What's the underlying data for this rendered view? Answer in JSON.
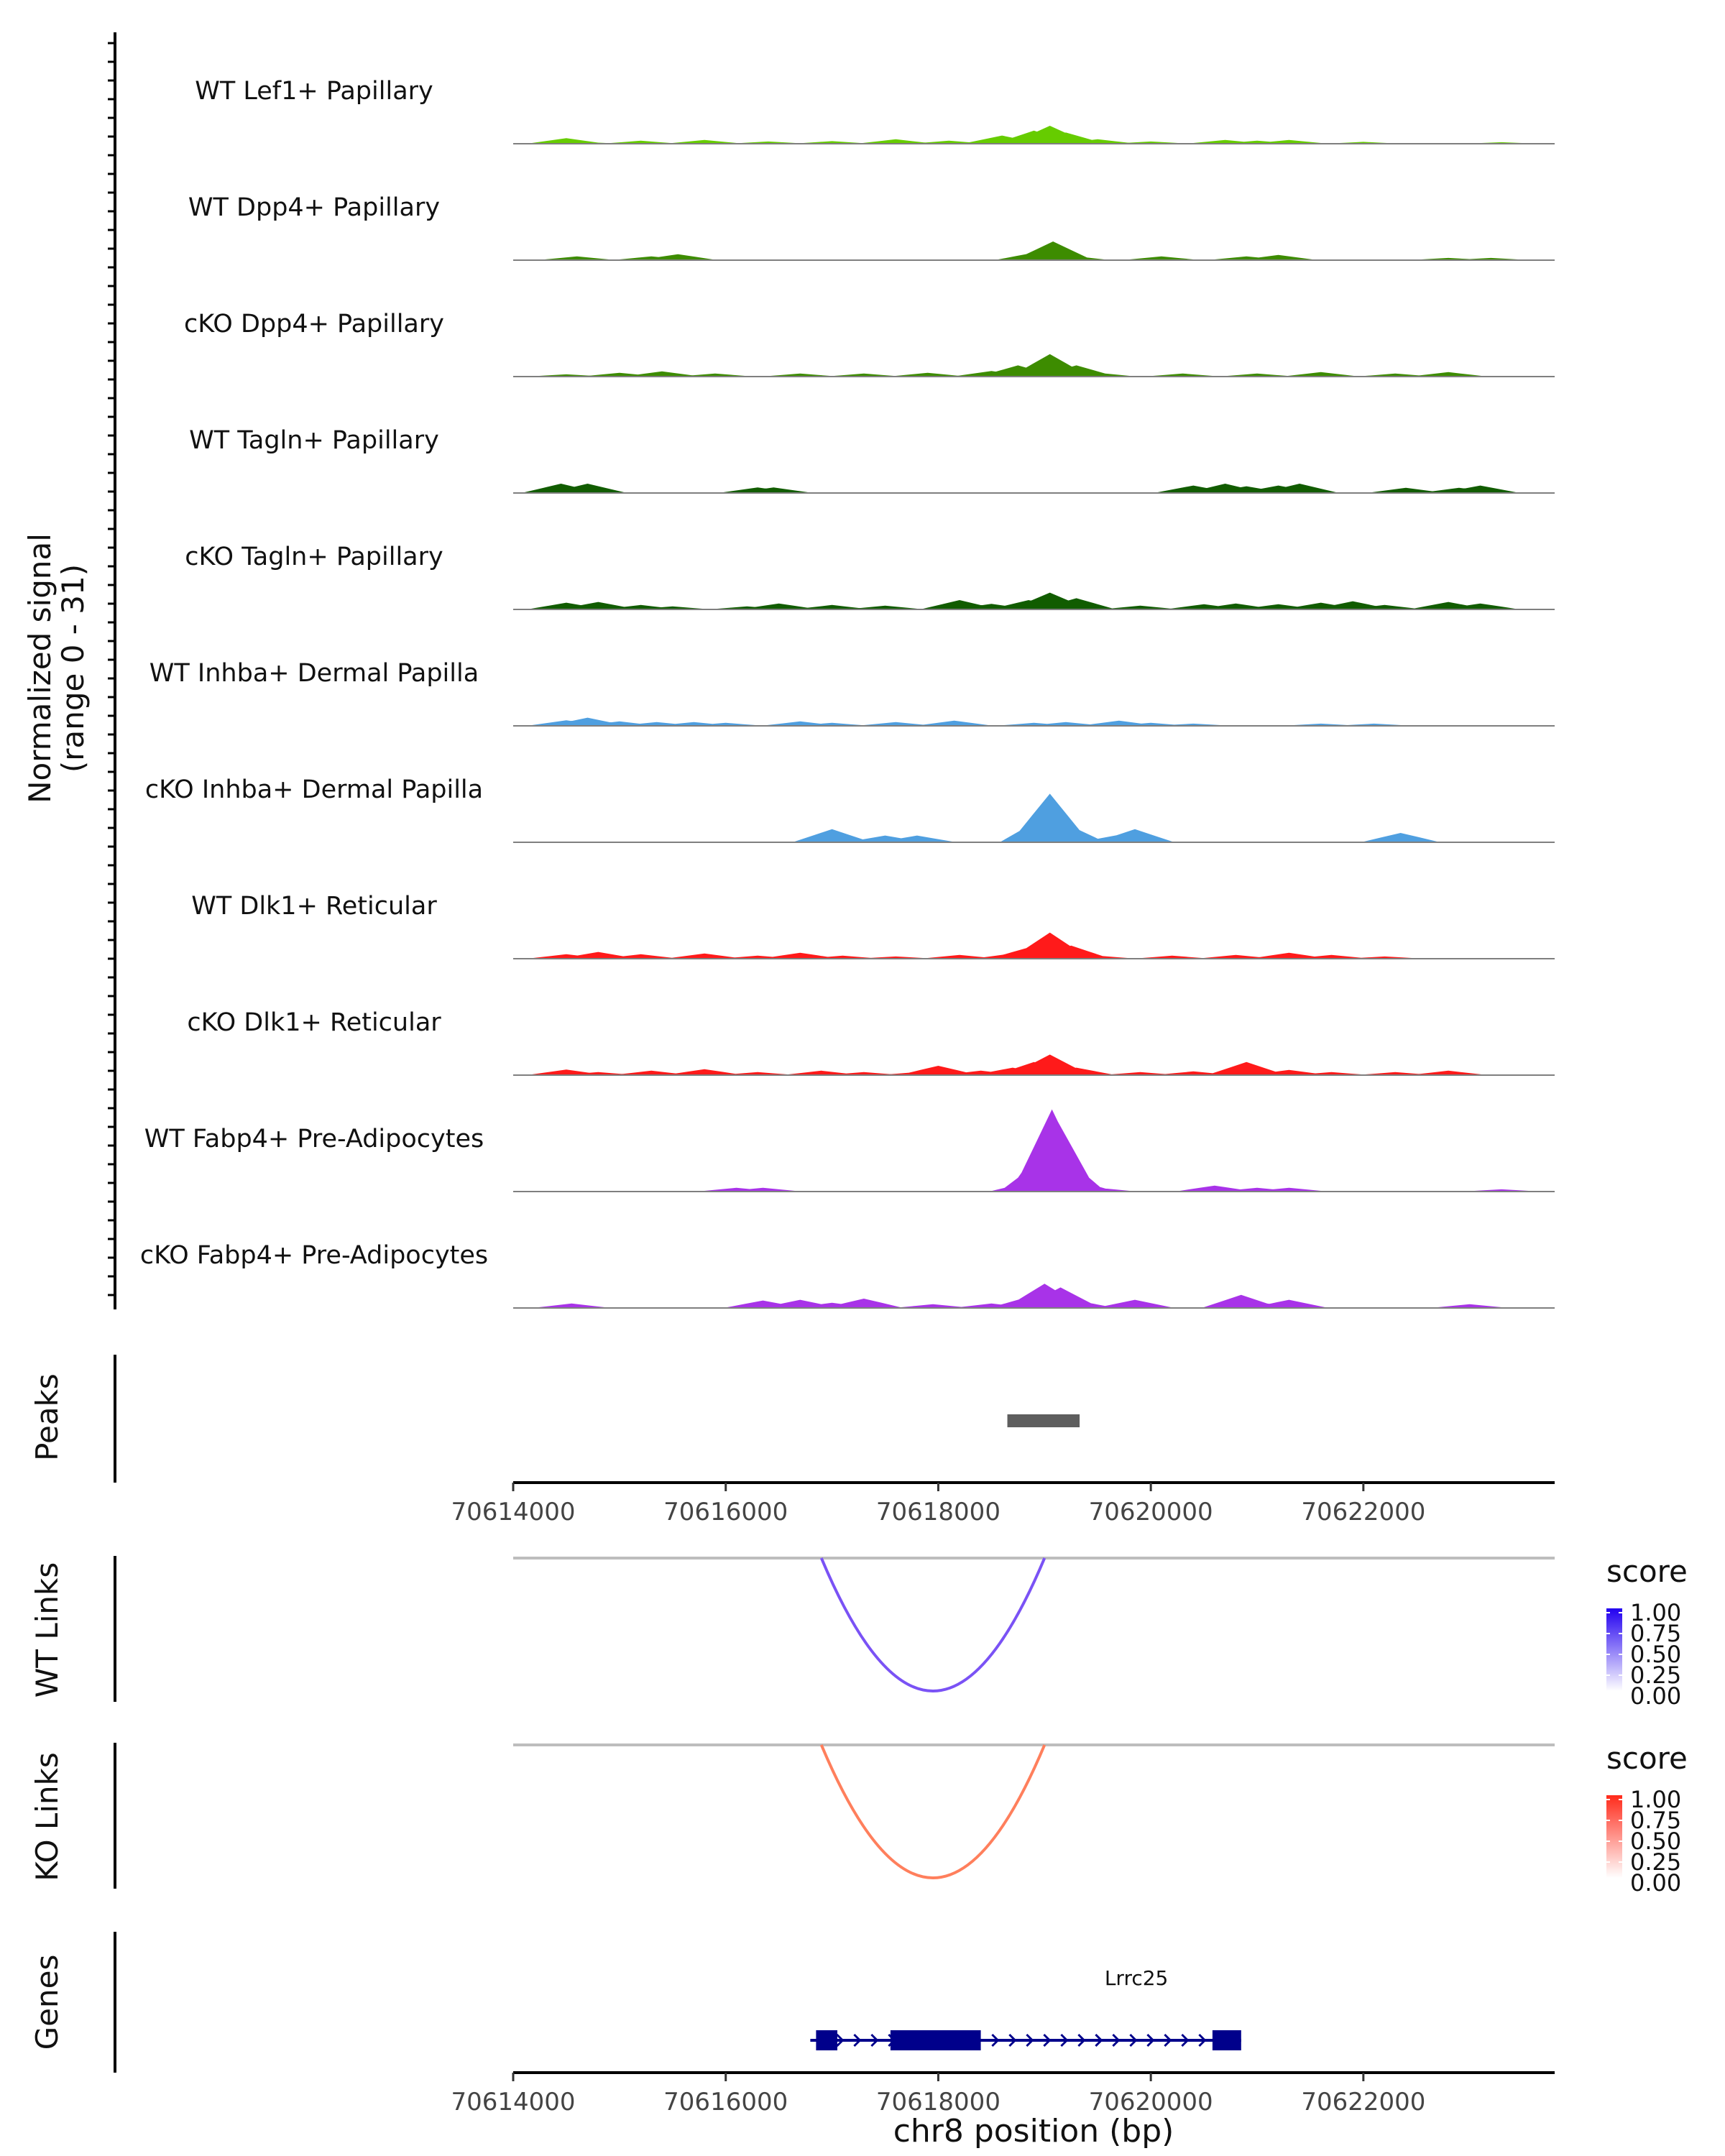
{
  "chart_data": {
    "type": "area",
    "genome_region": {
      "chrom": "chr8",
      "start": 70614000,
      "end": 70623800
    },
    "xlabel": "chr8 position (bp)",
    "x_ticks": [
      70614000,
      70616000,
      70618000,
      70620000,
      70622000
    ],
    "coverage": {
      "ylabel_line1": "Normalized signal",
      "ylabel_line2": "(range 0 - 31)",
      "range": [
        0,
        31
      ],
      "tracks": [
        {
          "name": "WT Lef1+ Papillary",
          "color": "#66cc00",
          "points": [
            [
              70614500,
              1.5
            ],
            [
              70614650,
              0.5
            ],
            [
              70615200,
              0.8
            ],
            [
              70615800,
              1.0
            ],
            [
              70616400,
              0.6
            ],
            [
              70617000,
              0.7
            ],
            [
              70617600,
              1.2
            ],
            [
              70618100,
              0.8
            ],
            [
              70618600,
              2.2
            ],
            [
              70618900,
              3.5
            ],
            [
              70619050,
              4.8
            ],
            [
              70619200,
              3.0
            ],
            [
              70619500,
              1.2
            ],
            [
              70620000,
              0.6
            ],
            [
              70620700,
              1.0
            ],
            [
              70621000,
              0.8
            ],
            [
              70621300,
              1.0
            ],
            [
              70622000,
              0.5
            ],
            [
              70623300,
              0.4
            ]
          ]
        },
        {
          "name": "WT Dpp4+ Papillary",
          "color": "#3d8c00",
          "points": [
            [
              70614600,
              1.0
            ],
            [
              70615300,
              1.0
            ],
            [
              70615550,
              1.6
            ],
            [
              70618900,
              2.0
            ],
            [
              70619080,
              5.0
            ],
            [
              70619250,
              1.2
            ],
            [
              70620100,
              1.0
            ],
            [
              70620900,
              1.0
            ],
            [
              70621200,
              1.4
            ],
            [
              70622800,
              0.6
            ],
            [
              70623200,
              0.6
            ]
          ]
        },
        {
          "name": "cKO Dpp4+ Papillary",
          "color": "#3d8c00",
          "points": [
            [
              70614500,
              0.6
            ],
            [
              70615000,
              1.0
            ],
            [
              70615400,
              1.4
            ],
            [
              70615900,
              0.8
            ],
            [
              70616700,
              0.8
            ],
            [
              70617300,
              0.8
            ],
            [
              70617900,
              1.0
            ],
            [
              70618500,
              1.5
            ],
            [
              70618750,
              3.0
            ],
            [
              70619050,
              6.0
            ],
            [
              70619300,
              3.0
            ],
            [
              70619500,
              1.0
            ],
            [
              70620300,
              0.8
            ],
            [
              70621000,
              0.8
            ],
            [
              70621600,
              1.2
            ],
            [
              70622300,
              0.8
            ],
            [
              70622800,
              1.2
            ]
          ]
        },
        {
          "name": "WT Tagln+ Papillary",
          "color": "#115c00",
          "points": [
            [
              70614450,
              2.5
            ],
            [
              70614700,
              2.5
            ],
            [
              70616300,
              1.5
            ],
            [
              70616450,
              1.5
            ],
            [
              70620400,
              2.0
            ],
            [
              70620700,
              2.5
            ],
            [
              70620900,
              1.8
            ],
            [
              70621200,
              2.0
            ],
            [
              70621400,
              2.5
            ],
            [
              70622400,
              1.4
            ],
            [
              70622900,
              1.4
            ],
            [
              70623100,
              2.0
            ]
          ]
        },
        {
          "name": "cKO Tagln+ Papillary",
          "color": "#115c00",
          "points": [
            [
              70614500,
              1.8
            ],
            [
              70614800,
              2.0
            ],
            [
              70615200,
              1.2
            ],
            [
              70615500,
              0.8
            ],
            [
              70616200,
              0.8
            ],
            [
              70616500,
              1.6
            ],
            [
              70617000,
              1.2
            ],
            [
              70617500,
              1.0
            ],
            [
              70618200,
              2.5
            ],
            [
              70618500,
              1.5
            ],
            [
              70618850,
              2.5
            ],
            [
              70619050,
              4.5
            ],
            [
              70619300,
              3.0
            ],
            [
              70619900,
              1.0
            ],
            [
              70620500,
              1.4
            ],
            [
              70620800,
              1.6
            ],
            [
              70621200,
              1.4
            ],
            [
              70621600,
              1.8
            ],
            [
              70621900,
              2.2
            ],
            [
              70622200,
              1.2
            ],
            [
              70622800,
              2.0
            ],
            [
              70623100,
              1.6
            ]
          ]
        },
        {
          "name": "WT Inhba+ Dermal Papilla",
          "color": "#4f9fe0",
          "points": [
            [
              70614500,
              1.5
            ],
            [
              70614700,
              2.2
            ],
            [
              70615000,
              1.2
            ],
            [
              70615350,
              1.0
            ],
            [
              70615700,
              1.0
            ],
            [
              70616000,
              0.8
            ],
            [
              70616700,
              1.2
            ],
            [
              70617000,
              0.8
            ],
            [
              70617600,
              1.0
            ],
            [
              70618150,
              1.4
            ],
            [
              70618900,
              0.8
            ],
            [
              70619200,
              1.0
            ],
            [
              70619700,
              1.4
            ],
            [
              70620000,
              0.8
            ],
            [
              70620400,
              0.6
            ],
            [
              70621600,
              0.6
            ],
            [
              70622100,
              0.6
            ]
          ]
        },
        {
          "name": "cKO Inhba+ Dermal Papilla",
          "color": "#4f9fe0",
          "points": [
            [
              70617000,
              3.5
            ],
            [
              70617500,
              1.8
            ],
            [
              70617800,
              1.8
            ],
            [
              70618950,
              6.0
            ],
            [
              70619050,
              13.0
            ],
            [
              70619200,
              5.0
            ],
            [
              70619700,
              2.0
            ],
            [
              70619850,
              3.5
            ],
            [
              70622350,
              2.5
            ]
          ]
        },
        {
          "name": "WT Dlk1+ Reticular",
          "color": "#ff1a1a",
          "points": [
            [
              70614500,
              1.2
            ],
            [
              70614800,
              1.8
            ],
            [
              70615200,
              1.2
            ],
            [
              70615800,
              1.4
            ],
            [
              70616300,
              0.8
            ],
            [
              70616700,
              1.6
            ],
            [
              70617100,
              0.8
            ],
            [
              70617600,
              0.6
            ],
            [
              70618200,
              1.0
            ],
            [
              70618700,
              1.4
            ],
            [
              70618850,
              3.0
            ],
            [
              70619050,
              7.0
            ],
            [
              70619250,
              3.5
            ],
            [
              70619500,
              0.8
            ],
            [
              70620200,
              0.8
            ],
            [
              70620800,
              1.0
            ],
            [
              70621300,
              1.6
            ],
            [
              70621700,
              1.0
            ],
            [
              70622200,
              0.6
            ]
          ]
        },
        {
          "name": "cKO Dlk1+ Reticular",
          "color": "#ff1a1a",
          "points": [
            [
              70614500,
              1.5
            ],
            [
              70614800,
              0.8
            ],
            [
              70615300,
              1.2
            ],
            [
              70615800,
              1.6
            ],
            [
              70616300,
              0.8
            ],
            [
              70616900,
              1.2
            ],
            [
              70617300,
              0.8
            ],
            [
              70617800,
              0.8
            ],
            [
              70618000,
              2.5
            ],
            [
              70618400,
              1.2
            ],
            [
              70618700,
              2.0
            ],
            [
              70618900,
              3.5
            ],
            [
              70619050,
              5.5
            ],
            [
              70619300,
              2.0
            ],
            [
              70619900,
              0.8
            ],
            [
              70620400,
              1.0
            ],
            [
              70620900,
              3.5
            ],
            [
              70621300,
              1.4
            ],
            [
              70621700,
              0.8
            ],
            [
              70622300,
              0.8
            ],
            [
              70622800,
              1.2
            ]
          ]
        },
        {
          "name": "WT Fabp4+ Pre-Adipocytes",
          "color": "#a833e8",
          "points": [
            [
              70616100,
              1.0
            ],
            [
              70616350,
              1.0
            ],
            [
              70618850,
              2.5
            ],
            [
              70618950,
              8.0
            ],
            [
              70619030,
              15.0
            ],
            [
              70619070,
              22.0
            ],
            [
              70619120,
              19.0
            ],
            [
              70619200,
              9.0
            ],
            [
              70619300,
              3.0
            ],
            [
              70619500,
              1.0
            ],
            [
              70620600,
              1.6
            ],
            [
              70621000,
              1.0
            ],
            [
              70621300,
              1.0
            ],
            [
              70623300,
              0.6
            ]
          ]
        },
        {
          "name": "cKO Fabp4+ Pre-Adipocytes",
          "color": "#a833e8",
          "points": [
            [
              70614550,
              1.2
            ],
            [
              70616350,
              2.0
            ],
            [
              70616700,
              2.2
            ],
            [
              70617000,
              1.4
            ],
            [
              70617300,
              2.5
            ],
            [
              70617950,
              1.0
            ],
            [
              70618500,
              1.2
            ],
            [
              70618850,
              3.0
            ],
            [
              70619000,
              6.5
            ],
            [
              70619150,
              5.5
            ],
            [
              70619300,
              2.0
            ],
            [
              70619850,
              2.2
            ],
            [
              70620850,
              3.5
            ],
            [
              70621000,
              1.6
            ],
            [
              70621300,
              2.2
            ],
            [
              70623000,
              1.0
            ]
          ]
        }
      ]
    },
    "peaks": {
      "label": "Peaks",
      "intervals": [
        [
          70618650,
          70619330
        ]
      ],
      "color": "#5e5e5e"
    },
    "links": [
      {
        "label": "WT Links",
        "start": 70616900,
        "end": 70619000,
        "score": 0.75,
        "color": "#7a52f5",
        "legend": {
          "title": "score",
          "ticks": [
            "1.00",
            "0.75",
            "0.50",
            "0.25",
            "0.00"
          ],
          "low_color": "#ffffff",
          "high_color": "#2200f0"
        }
      },
      {
        "label": "KO Links",
        "start": 70616900,
        "end": 70619000,
        "score": 0.6,
        "color": "#ff7f5c",
        "legend": {
          "title": "score",
          "ticks": [
            "1.00",
            "0.75",
            "0.50",
            "0.25",
            "0.00"
          ],
          "low_color": "#ffffff",
          "high_color": "#ff2a1a"
        }
      }
    ],
    "genes": {
      "label": "Genes",
      "items": [
        {
          "name": "Lrrc25",
          "strand": "+",
          "start": 70616850,
          "end": 70620850,
          "color": "#00008b",
          "exons": [
            [
              70616850,
              70617050
            ],
            [
              70617550,
              70618400
            ],
            [
              70620580,
              70620850
            ]
          ]
        }
      ]
    }
  }
}
